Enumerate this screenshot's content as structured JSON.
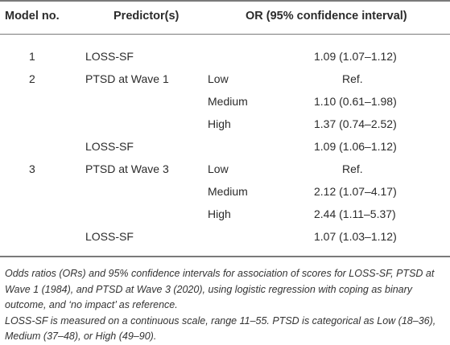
{
  "table": {
    "headers": {
      "model": "Model no.",
      "predictors": "Predictor(s)",
      "or": "OR (95% confidence interval)"
    },
    "rows": [
      {
        "model": "1",
        "predictor": "LOSS-SF",
        "level": "",
        "or": "1.09 (1.07–1.12)"
      },
      {
        "model": "2",
        "predictor": "PTSD at Wave 1",
        "level": "Low",
        "or": "Ref."
      },
      {
        "model": "",
        "predictor": "",
        "level": "Medium",
        "or": "1.10 (0.61–1.98)"
      },
      {
        "model": "",
        "predictor": "",
        "level": "High",
        "or": "1.37 (0.74–2.52)"
      },
      {
        "model": "",
        "predictor": "LOSS-SF",
        "level": "",
        "or": "1.09 (1.06–1.12)"
      },
      {
        "model": "3",
        "predictor": "PTSD at Wave 3",
        "level": "Low",
        "or": "Ref."
      },
      {
        "model": "",
        "predictor": "",
        "level": "Medium",
        "or": "2.12 (1.07–4.17)"
      },
      {
        "model": "",
        "predictor": "",
        "level": "High",
        "or": "2.44 (1.11–5.37)"
      },
      {
        "model": "",
        "predictor": "LOSS-SF",
        "level": "",
        "or": "1.07 (1.03–1.12)"
      }
    ]
  },
  "notes": {
    "line1": "Odds ratios (ORs) and 95% confidence intervals for association of scores for LOSS-SF, PTSD at Wave 1 (1984), and PTSD at Wave 3 (2020), using logistic regression with coping as binary outcome, and ‘no impact’ as reference.",
    "line2": "LOSS-SF is measured on a continuous scale, range 11–55. PTSD is categorical as Low (18–36), Medium (37–48), or High (49–90)."
  }
}
